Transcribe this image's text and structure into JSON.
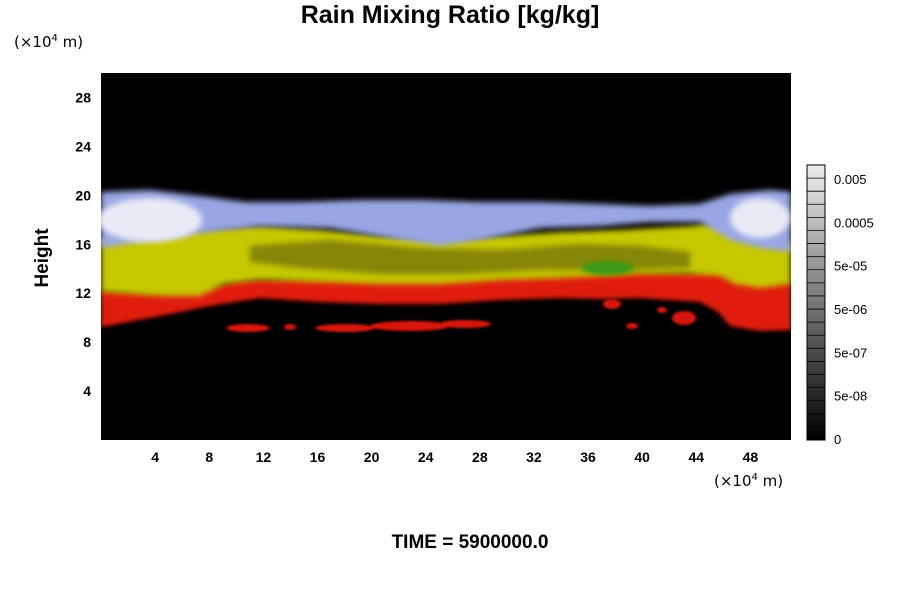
{
  "chart_data": {
    "type": "heatmap",
    "title": "Rain Mixing Ratio [kg/kg]",
    "xlabel": "",
    "ylabel": "Height",
    "x_unit": "(×10",
    "x_unit_exp": "4",
    "x_unit_tail": " m)",
    "y_unit": "(×10",
    "y_unit_exp": "4",
    "y_unit_tail": " m)",
    "xlim": [
      0,
      51
    ],
    "ylim": [
      0,
      30
    ],
    "x_ticks": [
      4,
      8,
      12,
      16,
      20,
      24,
      28,
      32,
      36,
      40,
      44,
      48
    ],
    "y_ticks": [
      4,
      8,
      12,
      16,
      20,
      24,
      28
    ],
    "colorbar": {
      "labels": [
        "0.005",
        "0.0005",
        "5e-05",
        "5e-06",
        "5e-07",
        "5e-08",
        "0"
      ]
    },
    "layers": [
      {
        "name": "blue-white cloud top",
        "color": "#aab2e6",
        "approx_height_range": [
          15.5,
          20
        ]
      },
      {
        "name": "yellow band",
        "color": "#c9c900",
        "approx_height_range": [
          12.5,
          16.5
        ]
      },
      {
        "name": "red band",
        "color": "#e01a10",
        "approx_height_range": [
          9.5,
          13
        ]
      }
    ],
    "footer": "TIME = 5900000.0"
  }
}
